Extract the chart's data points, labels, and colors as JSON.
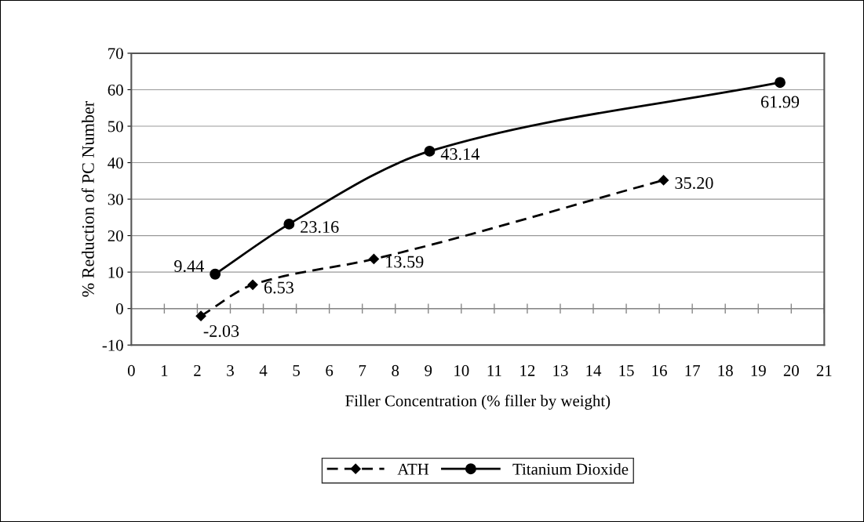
{
  "chart_data": {
    "type": "line",
    "xlabel": "Filler Concentration (% filler by weight)",
    "ylabel": "% Reduction of PC Number",
    "xlim": [
      0,
      21
    ],
    "xticks": [
      0,
      1,
      2,
      3,
      4,
      5,
      6,
      7,
      8,
      9,
      10,
      11,
      12,
      13,
      14,
      15,
      16,
      17,
      18,
      19,
      20,
      21
    ],
    "ylim": [
      -10,
      70
    ],
    "yticks": [
      -10,
      0,
      10,
      20,
      30,
      40,
      50,
      60,
      70
    ],
    "grid": "y",
    "legend": "bottom",
    "series": [
      {
        "name": "ATH",
        "color": "#000000",
        "marker": "diamond",
        "line_style": "dashed",
        "x": [
          2.11,
          3.68,
          7.35,
          16.13
        ],
        "values": [
          -2.03,
          6.53,
          13.59,
          35.2
        ],
        "value_labels": [
          "-2.03",
          "6.53",
          "13.59",
          "35.20"
        ]
      },
      {
        "name": "Titanium Dioxide",
        "color": "#000000",
        "marker": "circle",
        "line_style": "solid",
        "x": [
          2.54,
          4.78,
          9.04,
          19.66
        ],
        "values": [
          9.44,
          23.16,
          43.14,
          61.99
        ],
        "value_labels": [
          "9.44",
          "23.16",
          "43.14",
          "61.99"
        ]
      }
    ]
  }
}
